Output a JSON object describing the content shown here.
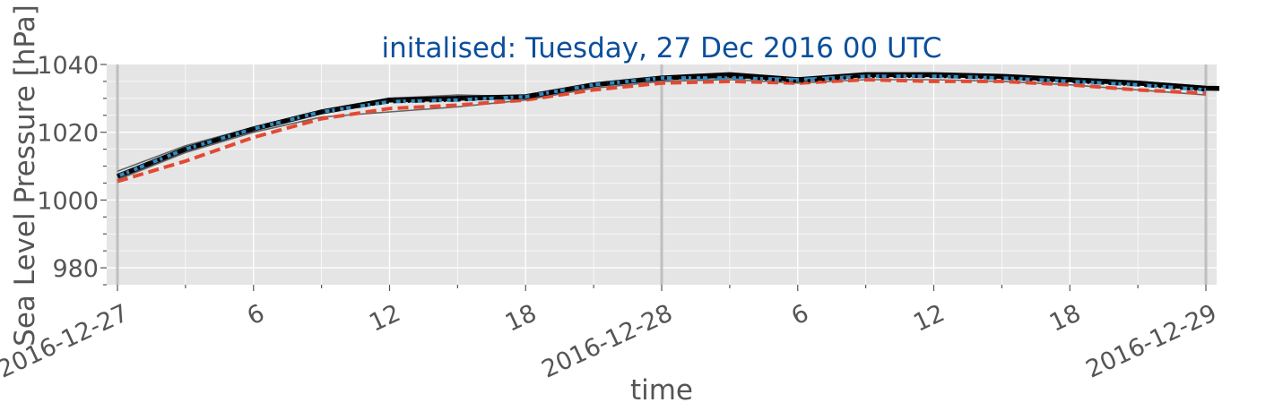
{
  "chart_data": {
    "type": "line",
    "title": "initalised: Tuesday, 27 Dec 2016 00 UTC",
    "xlabel": "time",
    "ylabel": "Sea Level Pressure [hPa]",
    "xlim": [
      "2016-12-27T00",
      "2016-12-29T00"
    ],
    "ylim": [
      975,
      1040
    ],
    "yticks": [
      980,
      1000,
      1020,
      1040
    ],
    "xticks": [
      {
        "t": "2016-12-27T00",
        "label": "2016-12-27"
      },
      {
        "t": "2016-12-27T06",
        "label": "6"
      },
      {
        "t": "2016-12-27T12",
        "label": "12"
      },
      {
        "t": "2016-12-27T18",
        "label": "18"
      },
      {
        "t": "2016-12-28T00",
        "label": "2016-12-28"
      },
      {
        "t": "2016-12-28T06",
        "label": "6"
      },
      {
        "t": "2016-12-28T12",
        "label": "12"
      },
      {
        "t": "2016-12-28T18",
        "label": "18"
      },
      {
        "t": "2016-12-29T00",
        "label": "2016-12-29"
      }
    ],
    "x": [
      "2016-12-27T00",
      "2016-12-27T03",
      "2016-12-27T06",
      "2016-12-27T09",
      "2016-12-27T12",
      "2016-12-27T15",
      "2016-12-27T18",
      "2016-12-27T21",
      "2016-12-28T00",
      "2016-12-28T03",
      "2016-12-28T06",
      "2016-12-28T09",
      "2016-12-28T12",
      "2016-12-28T15",
      "2016-12-28T18",
      "2016-12-28T21",
      "2016-12-29T00"
    ],
    "grid": true,
    "day_lines": [
      "2016-12-27T00",
      "2016-12-28T00",
      "2016-12-29T00"
    ],
    "series": [
      {
        "role": "ensemble-member",
        "color": "#666666",
        "values": [
          1008.5,
          1016,
          1021.5,
          1026.5,
          1030,
          1031,
          1030.5,
          1034,
          1036,
          1036.5,
          1036,
          1037,
          1037,
          1036.5,
          1036,
          1035,
          1033.5
        ]
      },
      {
        "role": "ensemble-member",
        "color": "#666666",
        "values": [
          1006,
          1014,
          1020,
          1024.5,
          1026,
          1027.5,
          1029.5,
          1033,
          1035,
          1035.5,
          1034.5,
          1035.5,
          1035.5,
          1035,
          1034,
          1032.5,
          1031
        ]
      },
      {
        "role": "ensemble-member",
        "color": "#666666",
        "values": [
          1007.5,
          1015.5,
          1021,
          1026,
          1029,
          1030,
          1030,
          1034,
          1035.5,
          1036,
          1035.5,
          1036.5,
          1036.5,
          1036,
          1035.5,
          1034.5,
          1032.5
        ]
      },
      {
        "role": "dashed-red",
        "color": "#e24a33",
        "values": [
          1005.5,
          1011.5,
          1018.5,
          1024,
          1027,
          1028,
          1029.5,
          1032.5,
          1034.5,
          1035,
          1034.5,
          1035.5,
          1035,
          1035,
          1034,
          1032.5,
          1031.5
        ]
      },
      {
        "role": "solid-black",
        "color": "#000000",
        "values": [
          1007,
          1015,
          1021,
          1026,
          1029.5,
          1030,
          1030.5,
          1034,
          1036,
          1037,
          1035.5,
          1037,
          1037,
          1036.5,
          1035.5,
          1034.5,
          1033
        ]
      },
      {
        "role": "dashed-blue",
        "color": "#348abd",
        "values": [
          1007,
          1015,
          1021,
          1026,
          1029,
          1029.5,
          1030.5,
          1034,
          1036,
          1036,
          1035.5,
          1036.5,
          1036.5,
          1036,
          1035,
          1034,
          1032.5
        ]
      },
      {
        "role": "dotted-black",
        "color": "#000000",
        "values": [
          1007,
          1015,
          1021,
          1026,
          1029,
          1029.5,
          1030.5,
          1034,
          1036,
          1036.5,
          1035,
          1036.5,
          1036.5,
          1036,
          1035,
          1034,
          1032.5
        ]
      }
    ],
    "colors": {
      "plot_background": "#e5e5e5",
      "grid": "#ffffff",
      "day_line": "#bfbfbf",
      "title": "#0b4f9c",
      "text": "#555555"
    }
  }
}
